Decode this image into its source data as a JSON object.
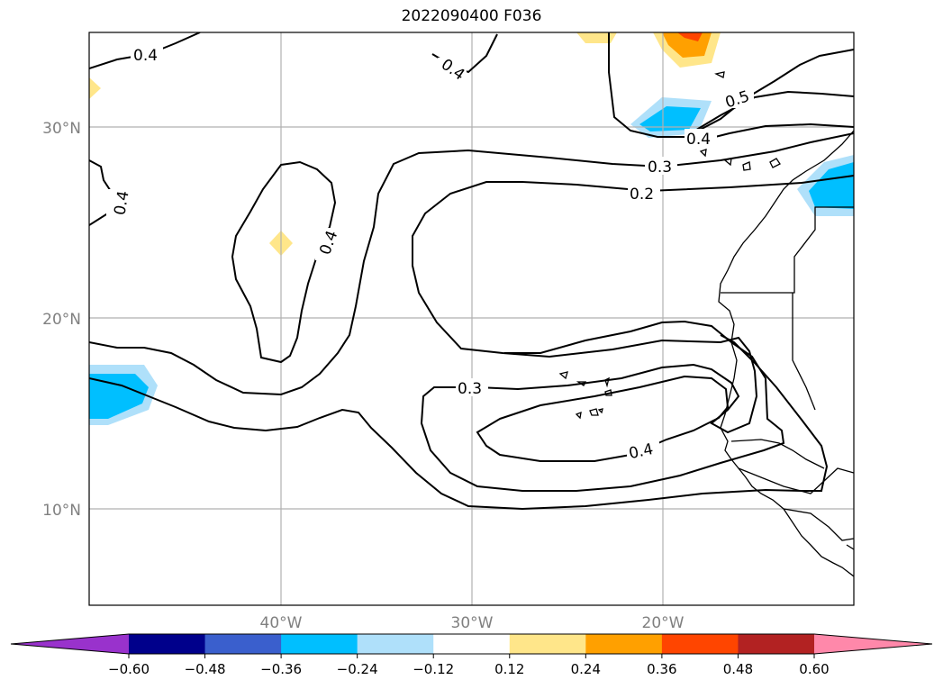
{
  "title": "2022090400 F036",
  "map": {
    "lat_labels": [
      "30°N",
      "20°N",
      "10°N"
    ],
    "lon_labels": [
      "40°W",
      "30°W",
      "20°W"
    ]
  },
  "contours": {
    "labels": [
      "0.4",
      "0.4",
      "0.4",
      "0.4",
      "0.5",
      "0.4",
      "0.3",
      "0.2",
      "0.3",
      "0.4"
    ]
  },
  "colorbar": {
    "ticks": [
      "−0.60",
      "−0.48",
      "−0.36",
      "−0.24",
      "−0.12",
      "0.12",
      "0.24",
      "0.36",
      "0.48",
      "0.60"
    ],
    "colors": [
      "#9932cc",
      "#00008b",
      "#3a5fcd",
      "#00bfff",
      "#afe0fa",
      "#ffffff",
      "#ffe68a",
      "#ffa000",
      "#ff4500",
      "#b22222",
      "#ff88aa"
    ]
  }
}
